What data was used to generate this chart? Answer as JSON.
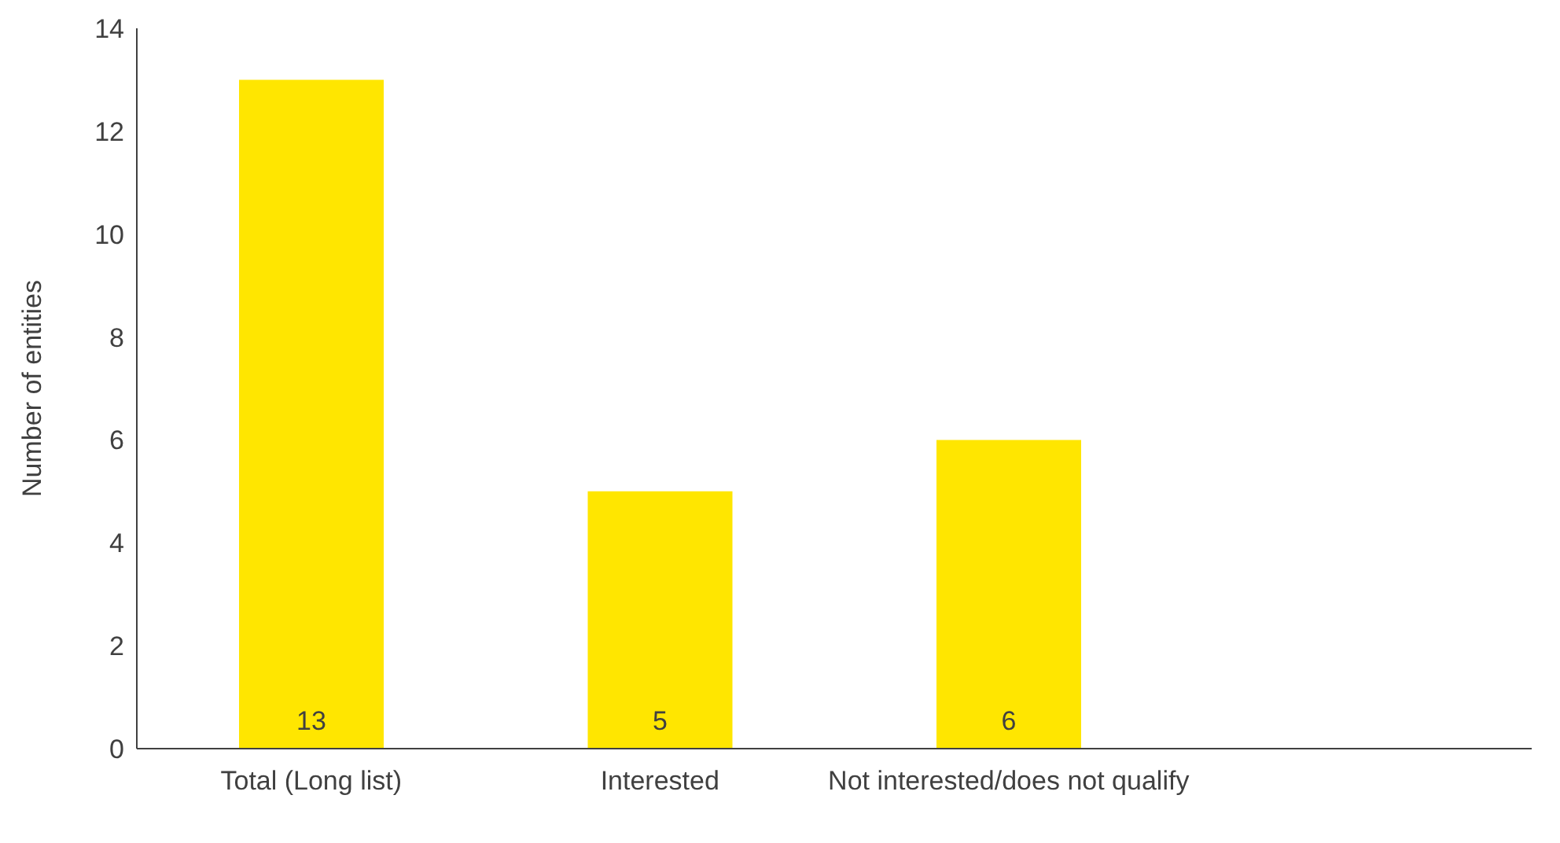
{
  "chart_data": {
    "type": "bar",
    "ylabel": "Number of entities",
    "categories": [
      "Total (Long list)",
      "Interested",
      "Not interested/does not qualify",
      null
    ],
    "values": [
      13,
      5,
      6,
      null
    ],
    "color": "#ffe600",
    "ylim": [
      0,
      14
    ],
    "yticks": [
      0,
      2,
      4,
      6,
      8,
      10,
      12,
      14
    ],
    "grid": false,
    "data_labels": true
  }
}
